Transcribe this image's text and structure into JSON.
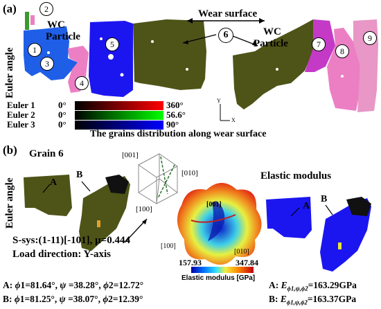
{
  "panel_a": {
    "label": "(a)",
    "y_axis": "Euler angle",
    "wear_surface": "Wear surface",
    "wc_particle_left": [
      "WC",
      "Particle"
    ],
    "wc_particle_right": [
      "WC",
      "Particle"
    ],
    "grain_numbers": [
      "1",
      "2",
      "3",
      "4",
      "5",
      "6",
      "7",
      "8",
      "9"
    ],
    "legend": {
      "rows": [
        {
          "name": "Euler 1",
          "min": "0°",
          "max": "360°",
          "color": "#ff0000"
        },
        {
          "name": "Euler 2",
          "min": "0°",
          "max": "56.6°",
          "color": "#00ff00"
        },
        {
          "name": "Euler 3",
          "min": "0°",
          "max": "90°",
          "color": "#0000ff"
        }
      ]
    },
    "axis_y": "Y",
    "axis_x": "X",
    "caption": "The grains distribution along wear surface"
  },
  "panel_b": {
    "label": "(b)",
    "title": "Grain 6",
    "y_axis": "Euler angle",
    "point_a": "A",
    "point_b": "B",
    "cube_labels": {
      "top": "[001]",
      "right": "[010]",
      "bottom": "[100]"
    },
    "surface_labels": {
      "top": "[001]",
      "left": "[100]",
      "right": "[010]"
    },
    "elastic_title": "Elastic modulus",
    "colorbar": {
      "min": "157.93",
      "max": "347.84",
      "label": "Elastic modulus [GPa]"
    },
    "slip_system": "S-sys:(1-11)[-101], μ=0.444",
    "load_direction": "Load direction: Y-axis",
    "angles": [
      {
        "pt": "A:",
        "phi1": "81.64°",
        "psi": "38.28°",
        "phi2": "12.72°"
      },
      {
        "pt": "B:",
        "phi1": "81.25°",
        "psi": "38.07°",
        "phi2": "12.39°"
      }
    ],
    "moduli": [
      {
        "pt": "A:",
        "value": "163.29GPa"
      },
      {
        "pt": "B:",
        "value": "163.37GPa"
      }
    ],
    "colors": {
      "olive": "#4e5418",
      "blue": "#1b16f0",
      "magenta": "#c43ac7",
      "pink": "#ec7fc4"
    }
  }
}
